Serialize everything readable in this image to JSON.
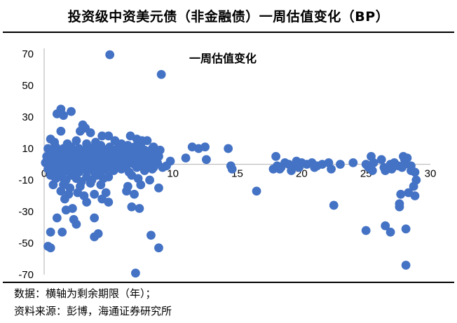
{
  "title": "投资级中资美元债（非金融债）一周估值变化（BP）",
  "footer": {
    "line1": "数据：横轴为剩余期限（年）；",
    "line2": "资料来源：彭博，海通证券研究所"
  },
  "colors": {
    "point": "#4472c4",
    "axis": "#bfbfbf"
  },
  "chart_data": {
    "type": "scatter",
    "title": "一周估值变化",
    "xlabel": "",
    "ylabel": "",
    "xlim": [
      0,
      30
    ],
    "ylim": [
      -70,
      70
    ],
    "xticks": [
      "0",
      "5",
      "10",
      "15",
      "20",
      "25",
      "30"
    ],
    "yticks": [
      "70",
      "50",
      "30",
      "10",
      "-10",
      "-30",
      "-50",
      "-70"
    ],
    "grid": false,
    "series": [
      {
        "points": [
          [
            5.1,
            69.5
          ],
          [
            9.1,
            57
          ],
          [
            1.3,
            35
          ],
          [
            2.1,
            33.5
          ],
          [
            1.0,
            32
          ],
          [
            1.5,
            31
          ],
          [
            3.0,
            25
          ],
          [
            3.2,
            23
          ],
          [
            2.8,
            21
          ],
          [
            3.6,
            20
          ],
          [
            1.3,
            21
          ],
          [
            4.5,
            18
          ],
          [
            5.0,
            18
          ],
          [
            6.7,
            18
          ],
          [
            7.2,
            16
          ],
          [
            7.6,
            15
          ],
          [
            8.0,
            15
          ],
          [
            0.5,
            16
          ],
          [
            0.8,
            14
          ],
          [
            1.8,
            13
          ],
          [
            2.5,
            15
          ],
          [
            3.3,
            13
          ],
          [
            4.0,
            14
          ],
          [
            4.4,
            12
          ],
          [
            5.5,
            15
          ],
          [
            6.0,
            13
          ],
          [
            6.5,
            12
          ],
          [
            7.0,
            11
          ],
          [
            7.5,
            12
          ],
          [
            8.5,
            11
          ],
          [
            0.3,
            10
          ],
          [
            0.6,
            8
          ],
          [
            0.9,
            11
          ],
          [
            1.2,
            9
          ],
          [
            1.5,
            10
          ],
          [
            1.8,
            8
          ],
          [
            2.1,
            11
          ],
          [
            2.4,
            9
          ],
          [
            2.7,
            10
          ],
          [
            3.0,
            8
          ],
          [
            3.3,
            10
          ],
          [
            3.6,
            9
          ],
          [
            3.9,
            11
          ],
          [
            4.2,
            8
          ],
          [
            4.5,
            10
          ],
          [
            4.8,
            9
          ],
          [
            5.1,
            11
          ],
          [
            5.4,
            8
          ],
          [
            5.7,
            10
          ],
          [
            6.0,
            9
          ],
          [
            6.3,
            11
          ],
          [
            6.6,
            8
          ],
          [
            6.9,
            10
          ],
          [
            7.2,
            9
          ],
          [
            7.5,
            7
          ],
          [
            7.8,
            9
          ],
          [
            8.1,
            8
          ],
          [
            8.4,
            10
          ],
          [
            8.7,
            7
          ],
          [
            9.0,
            9
          ],
          [
            0.2,
            5
          ],
          [
            0.5,
            6
          ],
          [
            0.8,
            4
          ],
          [
            1.1,
            6
          ],
          [
            1.4,
            5
          ],
          [
            1.7,
            3
          ],
          [
            2.0,
            6
          ],
          [
            2.3,
            4
          ],
          [
            2.6,
            5
          ],
          [
            2.9,
            3
          ],
          [
            3.2,
            6
          ],
          [
            3.5,
            4
          ],
          [
            3.8,
            5
          ],
          [
            4.1,
            3
          ],
          [
            4.4,
            6
          ],
          [
            4.7,
            4
          ],
          [
            5.0,
            5
          ],
          [
            5.3,
            3
          ],
          [
            5.6,
            6
          ],
          [
            5.9,
            4
          ],
          [
            6.2,
            5
          ],
          [
            6.5,
            3
          ],
          [
            6.8,
            5
          ],
          [
            7.1,
            4
          ],
          [
            7.4,
            6
          ],
          [
            7.7,
            3
          ],
          [
            8.0,
            5
          ],
          [
            8.3,
            4
          ],
          [
            8.6,
            3
          ],
          [
            8.9,
            5
          ],
          [
            0.1,
            1
          ],
          [
            0.4,
            2
          ],
          [
            0.7,
            0
          ],
          [
            1.0,
            2
          ],
          [
            1.3,
            1
          ],
          [
            1.6,
            -1
          ],
          [
            1.9,
            2
          ],
          [
            2.2,
            0
          ],
          [
            2.5,
            1
          ],
          [
            2.8,
            -1
          ],
          [
            3.1,
            2
          ],
          [
            3.4,
            0
          ],
          [
            3.7,
            1
          ],
          [
            4.0,
            -1
          ],
          [
            4.3,
            2
          ],
          [
            4.6,
            0
          ],
          [
            4.9,
            1
          ],
          [
            5.2,
            -1
          ],
          [
            5.5,
            2
          ],
          [
            5.8,
            0
          ],
          [
            6.1,
            1
          ],
          [
            6.4,
            -1
          ],
          [
            6.7,
            1
          ],
          [
            7.0,
            0
          ],
          [
            7.3,
            2
          ],
          [
            7.6,
            -1
          ],
          [
            7.9,
            1
          ],
          [
            8.2,
            0
          ],
          [
            8.5,
            -2
          ],
          [
            8.8,
            1
          ],
          [
            9.5,
            -1
          ],
          [
            9.8,
            2
          ],
          [
            0.3,
            -3
          ],
          [
            0.6,
            -2
          ],
          [
            0.9,
            -4
          ],
          [
            1.2,
            -3
          ],
          [
            1.5,
            -5
          ],
          [
            1.8,
            -2
          ],
          [
            2.1,
            -4
          ],
          [
            2.4,
            -3
          ],
          [
            2.7,
            -5
          ],
          [
            3.0,
            -2
          ],
          [
            3.3,
            -4
          ],
          [
            3.6,
            -3
          ],
          [
            3.9,
            -5
          ],
          [
            4.2,
            -2
          ],
          [
            4.5,
            -4
          ],
          [
            4.8,
            -3
          ],
          [
            5.1,
            -2
          ],
          [
            5.4,
            -4
          ],
          [
            6.0,
            -3
          ],
          [
            6.6,
            -5
          ],
          [
            7.2,
            -2
          ],
          [
            7.8,
            -4
          ],
          [
            8.4,
            -3
          ],
          [
            9.2,
            -2
          ],
          [
            0.5,
            -7
          ],
          [
            0.9,
            -9
          ],
          [
            1.3,
            -8
          ],
          [
            1.7,
            -10
          ],
          [
            2.1,
            -7
          ],
          [
            2.5,
            -9
          ],
          [
            2.9,
            -11
          ],
          [
            3.3,
            -8
          ],
          [
            3.7,
            -10
          ],
          [
            4.1,
            -7
          ],
          [
            4.6,
            -9
          ],
          [
            5.0,
            -8
          ],
          [
            6.8,
            -7
          ],
          [
            7.3,
            -9
          ],
          [
            8.2,
            -10
          ],
          [
            0.7,
            -13
          ],
          [
            1.5,
            -13
          ],
          [
            2.0,
            -15
          ],
          [
            2.8,
            -14
          ],
          [
            3.6,
            -12
          ],
          [
            4.4,
            -13
          ],
          [
            6.5,
            -14
          ],
          [
            7.5,
            -13
          ],
          [
            8.9,
            -15
          ],
          [
            1.3,
            -17
          ],
          [
            1.9,
            -19
          ],
          [
            2.6,
            -18
          ],
          [
            3.1,
            -20
          ],
          [
            3.9,
            -19
          ],
          [
            4.8,
            -18
          ],
          [
            6.4,
            -17
          ],
          [
            7.0,
            -19
          ],
          [
            1.6,
            -22
          ],
          [
            3.3,
            -24
          ],
          [
            4.5,
            -22
          ],
          [
            5.0,
            -24
          ],
          [
            1.7,
            -29
          ],
          [
            2.2,
            -28
          ],
          [
            6.8,
            -27
          ],
          [
            7.4,
            -28
          ],
          [
            2.3,
            -35
          ],
          [
            2.5,
            -38
          ],
          [
            3.9,
            -34
          ],
          [
            1.0,
            -34
          ],
          [
            0.5,
            -43
          ],
          [
            1.4,
            -43
          ],
          [
            4.2,
            -44
          ],
          [
            3.9,
            -46
          ],
          [
            8.3,
            -45
          ],
          [
            0.3,
            -52
          ],
          [
            0.5,
            -53
          ],
          [
            8.9,
            -53
          ],
          [
            7.1,
            -69
          ],
          [
            11.0,
            4
          ],
          [
            11.5,
            11
          ],
          [
            12.0,
            10
          ],
          [
            12.5,
            11
          ],
          [
            12.6,
            3
          ],
          [
            14.3,
            10
          ],
          [
            14.5,
            -1
          ],
          [
            14.6,
            -3
          ],
          [
            16.5,
            -17
          ],
          [
            26.9,
            -43
          ],
          [
            17.8,
            -3
          ],
          [
            18.0,
            5
          ],
          [
            18.1,
            -1
          ],
          [
            18.4,
            -2
          ],
          [
            18.7,
            1
          ],
          [
            19.0,
            0
          ],
          [
            19.3,
            -1
          ],
          [
            19.6,
            2
          ],
          [
            20.0,
            1
          ],
          [
            20.4,
            0
          ],
          [
            20.8,
            1
          ],
          [
            21.2,
            -1
          ],
          [
            21.6,
            0
          ],
          [
            22.1,
            1
          ],
          [
            23.0,
            0
          ],
          [
            24.0,
            1
          ],
          [
            25.0,
            0
          ],
          [
            25.6,
            1
          ],
          [
            18.3,
            -3
          ],
          [
            19.2,
            -4
          ],
          [
            19.8,
            -2
          ],
          [
            21.0,
            -2
          ],
          [
            22.3,
            -3
          ],
          [
            25.2,
            -2
          ],
          [
            25.5,
            -4
          ],
          [
            26.4,
            -2
          ],
          [
            26.5,
            -4
          ],
          [
            27.0,
            -3
          ],
          [
            27.5,
            -1
          ],
          [
            28.5,
            -4
          ],
          [
            25.4,
            5
          ],
          [
            26.2,
            3
          ],
          [
            26.9,
            0
          ],
          [
            27.2,
            1
          ],
          [
            27.9,
            5
          ],
          [
            28.0,
            3
          ],
          [
            28.2,
            4
          ],
          [
            28.5,
            -1
          ],
          [
            28.0,
            0
          ],
          [
            27.8,
            -2
          ],
          [
            28.8,
            -5
          ],
          [
            28.9,
            -10
          ],
          [
            28.7,
            -14
          ],
          [
            28.3,
            -18
          ],
          [
            28.8,
            -20
          ],
          [
            27.7,
            -19
          ],
          [
            27.6,
            -25
          ],
          [
            27.6,
            -27
          ],
          [
            22.5,
            -26
          ],
          [
            25.0,
            -42
          ],
          [
            26.5,
            -39
          ],
          [
            28.1,
            -41
          ],
          [
            28.1,
            -64
          ]
        ]
      }
    ]
  }
}
